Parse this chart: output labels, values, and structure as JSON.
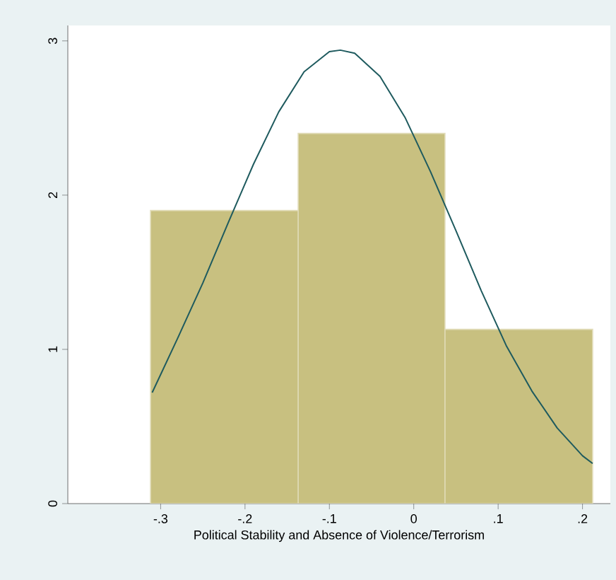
{
  "chart_data": {
    "type": "histogram",
    "xlabel": "Political Stability and Absence of Violence/Terrorism",
    "bins": [
      -0.312,
      -0.137,
      0.037,
      0.212
    ],
    "values": [
      1.9,
      2.4,
      1.13
    ],
    "color": "#c8c080",
    "series": [
      {
        "type": "line",
        "color": "#1e5a5e",
        "x": [
          -0.31,
          -0.28,
          -0.25,
          -0.22,
          -0.19,
          -0.16,
          -0.13,
          -0.1,
          -0.087,
          -0.07,
          -0.04,
          -0.01,
          0.02,
          0.05,
          0.08,
          0.11,
          0.14,
          0.17,
          0.2,
          0.212
        ],
        "values": [
          0.72,
          1.07,
          1.43,
          1.82,
          2.2,
          2.54,
          2.8,
          2.93,
          2.94,
          2.92,
          2.77,
          2.5,
          2.15,
          1.77,
          1.38,
          1.02,
          0.73,
          0.49,
          0.31,
          0.26
        ]
      }
    ],
    "xlim": [
      -0.41,
      0.233
    ],
    "ylim": [
      0,
      3.1
    ],
    "xticks": [
      {
        "value": -0.3,
        "label": "-.3"
      },
      {
        "value": -0.2,
        "label": "-.2"
      },
      {
        "value": -0.1,
        "label": "-.1"
      },
      {
        "value": 0,
        "label": "0"
      },
      {
        "value": 0.1,
        "label": ".1"
      },
      {
        "value": 0.2,
        "label": ".2"
      }
    ],
    "yticks": [
      0,
      1,
      2,
      3
    ],
    "grid": false
  }
}
